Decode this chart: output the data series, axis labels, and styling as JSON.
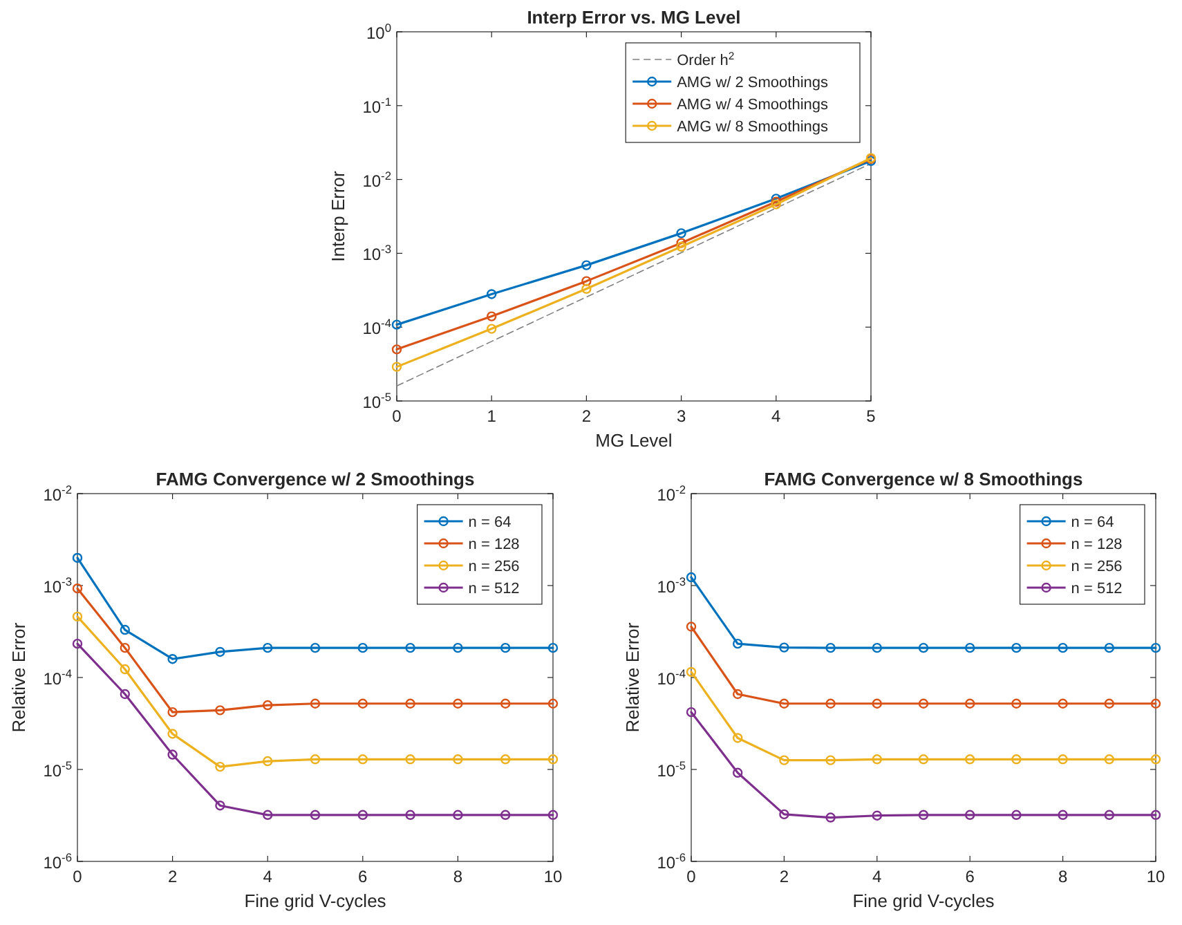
{
  "chart_data": [
    {
      "type": "line",
      "title": "Interp Error vs. MG Level",
      "xlabel": "MG Level",
      "ylabel": "Interp Error",
      "log": "y",
      "x": [
        0,
        1,
        2,
        3,
        4,
        5
      ],
      "xlim": [
        0,
        5
      ],
      "xticks": [
        0,
        1,
        2,
        3,
        4,
        5
      ],
      "ylim": [
        1e-05,
        1
      ],
      "yticks": [
        {
          "value": 1e-05,
          "label": "10$^{-5}$"
        },
        {
          "value": 0.0001,
          "label": "10$^{-4}$"
        },
        {
          "value": 0.001,
          "label": "10$^{-3}$"
        },
        {
          "value": 0.01,
          "label": "10$^{-2}$"
        },
        {
          "value": 0.1,
          "label": "10$^{-1}$"
        },
        {
          "value": 1,
          "label": "10$^{0}$"
        }
      ],
      "grid": false,
      "legend": "top right",
      "marker": "circle",
      "series": [
        {
          "name": "Order h$^{2}$",
          "color": "#808080",
          "marker": "none",
          "line_style": "dashed",
          "values": [
            1.6e-05,
            6.4e-05,
            0.000256,
            0.00102,
            0.0041,
            0.0164
          ]
        },
        {
          "name": "AMG w/ 2 Smoothings",
          "color": "#0072bd",
          "values": [
            0.000108,
            0.00028,
            0.00069,
            0.00187,
            0.0055,
            0.0178
          ]
        },
        {
          "name": "AMG w/ 4 Smoothings",
          "color": "#d95319",
          "values": [
            5e-05,
            0.00014,
            0.00042,
            0.00138,
            0.005,
            0.019
          ]
        },
        {
          "name": "AMG w/ 8 Smoothings",
          "color": "#edb120",
          "values": [
            2.9e-05,
            9.5e-05,
            0.00033,
            0.00123,
            0.0046,
            0.0195
          ]
        }
      ]
    },
    {
      "type": "line",
      "title": "FAMG Convergence w/ 2 Smoothings",
      "xlabel": "Fine grid V-cycles",
      "ylabel": "Relative Error",
      "log": "y",
      "x": [
        0,
        1,
        2,
        3,
        4,
        5,
        6,
        7,
        8,
        9,
        10
      ],
      "xlim": [
        0,
        10
      ],
      "xticks": [
        0,
        2,
        4,
        6,
        8,
        10
      ],
      "ylim": [
        1e-06,
        0.01
      ],
      "yticks": [
        {
          "value": 1e-06,
          "label": "10$^{-6}$"
        },
        {
          "value": 1e-05,
          "label": "10$^{-5}$"
        },
        {
          "value": 0.0001,
          "label": "10$^{-4}$"
        },
        {
          "value": 0.001,
          "label": "10$^{-3}$"
        },
        {
          "value": 0.01,
          "label": "10$^{-2}$"
        }
      ],
      "grid": false,
      "legend": "top right",
      "marker": "circle",
      "series": [
        {
          "name": "n = 64",
          "color": "#0072bd",
          "values": [
            0.002,
            0.00033,
            0.000159,
            0.00019,
            0.00021,
            0.00021,
            0.00021,
            0.00021,
            0.00021,
            0.00021,
            0.00021
          ]
        },
        {
          "name": "n = 128",
          "color": "#d95319",
          "values": [
            0.00093,
            0.00021,
            4.2e-05,
            4.4e-05,
            5e-05,
            5.2e-05,
            5.2e-05,
            5.2e-05,
            5.2e-05,
            5.2e-05,
            5.2e-05
          ]
        },
        {
          "name": "n = 256",
          "color": "#edb120",
          "values": [
            0.00046,
            0.000123,
            2.44e-05,
            1.07e-05,
            1.23e-05,
            1.29e-05,
            1.29e-05,
            1.29e-05,
            1.29e-05,
            1.29e-05,
            1.29e-05
          ]
        },
        {
          "name": "n = 512",
          "color": "#7e2f8e",
          "values": [
            0.000233,
            6.6e-05,
            1.45e-05,
            4.05e-06,
            3.2e-06,
            3.2e-06,
            3.2e-06,
            3.2e-06,
            3.2e-06,
            3.2e-06,
            3.2e-06
          ]
        }
      ]
    },
    {
      "type": "line",
      "title": "FAMG Convergence w/ 8 Smoothings",
      "xlabel": "Fine grid V-cycles",
      "ylabel": "Relative Error",
      "log": "y",
      "x": [
        0,
        1,
        2,
        3,
        4,
        5,
        6,
        7,
        8,
        9,
        10
      ],
      "xlim": [
        0,
        10
      ],
      "xticks": [
        0,
        2,
        4,
        6,
        8,
        10
      ],
      "ylim": [
        1e-06,
        0.01
      ],
      "yticks": [
        {
          "value": 1e-06,
          "label": "10$^{-6}$"
        },
        {
          "value": 1e-05,
          "label": "10$^{-5}$"
        },
        {
          "value": 0.0001,
          "label": "10$^{-4}$"
        },
        {
          "value": 0.001,
          "label": "10$^{-3}$"
        },
        {
          "value": 0.01,
          "label": "10$^{-2}$"
        }
      ],
      "grid": false,
      "legend": "top right",
      "marker": "circle",
      "series": [
        {
          "name": "n = 64",
          "color": "#0072bd",
          "values": [
            0.00123,
            0.000233,
            0.000212,
            0.00021,
            0.00021,
            0.00021,
            0.00021,
            0.00021,
            0.00021,
            0.00021,
            0.00021
          ]
        },
        {
          "name": "n = 128",
          "color": "#d95319",
          "values": [
            0.000357,
            6.6e-05,
            5.2e-05,
            5.2e-05,
            5.2e-05,
            5.2e-05,
            5.2e-05,
            5.2e-05,
            5.2e-05,
            5.2e-05,
            5.2e-05
          ]
        },
        {
          "name": "n = 256",
          "color": "#edb120",
          "values": [
            0.000115,
            2.2e-05,
            1.26e-05,
            1.26e-05,
            1.29e-05,
            1.29e-05,
            1.29e-05,
            1.29e-05,
            1.29e-05,
            1.29e-05,
            1.29e-05
          ]
        },
        {
          "name": "n = 512",
          "color": "#7e2f8e",
          "values": [
            4.2e-05,
            9.2e-06,
            3.25e-06,
            3e-06,
            3.15e-06,
            3.2e-06,
            3.2e-06,
            3.2e-06,
            3.2e-06,
            3.2e-06,
            3.2e-06
          ]
        }
      ]
    }
  ]
}
